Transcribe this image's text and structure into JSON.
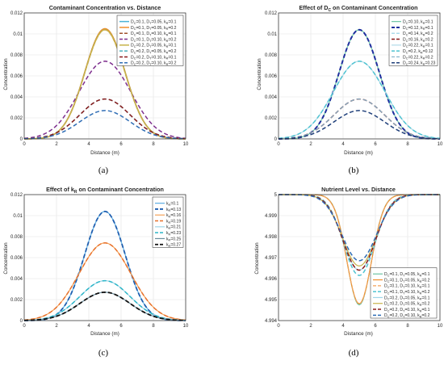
{
  "figure": {
    "subplots": [
      "(a)",
      "(b)",
      "(c)",
      "(d)"
    ]
  },
  "chart_data": [
    {
      "type": "line",
      "title": "Contaminant Concentration vs. Distance",
      "xlabel": "Distance (m)",
      "ylabel": "Concentration",
      "xlim": [
        0,
        10
      ],
      "ylim": [
        0,
        0.012
      ],
      "xticks": [
        "0",
        "2",
        "4",
        "6",
        "8",
        "10"
      ],
      "yticks": [
        "0",
        "0.002",
        "0.004",
        "0.006",
        "0.008",
        "0.01",
        "0.012"
      ],
      "grid": true,
      "legend_position": "top-right",
      "legend": [
        {
          "base": "D",
          "sub": "C",
          "rest": "=0.1, D",
          "sub2": "T",
          "rest2": "=0.05, k",
          "sub3": "R",
          "rest3": "=0.1",
          "color": "#4db3d6",
          "dash": "solid",
          "peak": 0.0105,
          "width": 1.5
        },
        {
          "base": "D",
          "sub": "C",
          "rest": "=0.1, D",
          "sub2": "T",
          "rest2": "=0.05, k",
          "sub3": "R",
          "rest3": "=0.2",
          "color": "#f28e2b",
          "dash": "solid",
          "peak": 0.0105,
          "width": 1.5
        },
        {
          "base": "D",
          "sub": "C",
          "rest": "=0.1, D",
          "sub2": "T",
          "rest2": "=0.10, k",
          "sub3": "R",
          "rest3": "=0.1",
          "color": "#a0522d",
          "dash": "dashed",
          "peak": 0.0104,
          "width": 1.5
        },
        {
          "base": "D",
          "sub": "C",
          "rest": "=0.1, D",
          "sub2": "T",
          "rest2": "=0.10, k",
          "sub3": "R",
          "rest3": "=0.2",
          "color": "#7e2f8e",
          "dash": "dashed",
          "peak": 0.0074,
          "width": 1.5
        },
        {
          "base": "D",
          "sub": "C",
          "rest": "=0.2, D",
          "sub2": "T",
          "rest2": "=0.05, k",
          "sub3": "R",
          "rest3": "=0.1",
          "color": "#c7b34a",
          "dash": "solid",
          "peak": 0.0104,
          "width": 1.5
        },
        {
          "base": "D",
          "sub": "C",
          "rest": "=0.2, D",
          "sub2": "T",
          "rest2": "=0.05, k",
          "sub3": "R",
          "rest3": "=0.2",
          "color": "#4fb3bf",
          "dash": "dashed",
          "peak": 0.0038,
          "width": 1.5
        },
        {
          "base": "D",
          "sub": "C",
          "rest": "=0.2, D",
          "sub2": "T",
          "rest2": "=0.10, k",
          "sub3": "R",
          "rest3": "=0.1",
          "color": "#8b1a1a",
          "dash": "dashed",
          "peak": 0.0038,
          "width": 1.5
        },
        {
          "base": "D",
          "sub": "C",
          "rest": "=0.2, D",
          "sub2": "T",
          "rest2": "=0.10, k",
          "sub3": "R",
          "rest3": "=0.2",
          "color": "#2f6db5",
          "dash": "dashed",
          "peak": 0.0027,
          "width": 1.5
        }
      ]
    },
    {
      "type": "line",
      "title_parts": [
        "Effect of D",
        "C",
        " on Contaminant Concentration"
      ],
      "xlabel": "Distance (m)",
      "ylabel": "Concentration",
      "xlim": [
        0,
        10
      ],
      "ylim": [
        0,
        0.012
      ],
      "xticks": [
        "0",
        "2",
        "4",
        "6",
        "8",
        "10"
      ],
      "yticks": [
        "0",
        "0.002",
        "0.004",
        "0.006",
        "0.008",
        "0.01",
        "0.012"
      ],
      "grid": true,
      "legend_position": "top-right",
      "legend": [
        {
          "base": "D",
          "sub": "C",
          "rest": "=0.10, k",
          "sub3": "R",
          "rest3": "=0.1",
          "color": "#6cc4a4",
          "dash": "solid",
          "peak": 0.0104,
          "width": 1.2
        },
        {
          "base": "D",
          "sub": "C",
          "rest": "=0.12, k",
          "sub3": "R",
          "rest3": "=0.1",
          "color": "#1f2f9e",
          "dash": "dashed",
          "peak": 0.0104,
          "width": 2.0
        },
        {
          "base": "D",
          "sub": "C",
          "rest": "=0.14, k",
          "sub3": "R",
          "rest3": "=0.2",
          "color": "#9fd5e8",
          "dash": "dashed",
          "peak": 0.0074,
          "width": 1.2
        },
        {
          "base": "D",
          "sub": "C",
          "rest": "=0.16, k",
          "sub3": "R",
          "rest3": "=0.2",
          "color": "#8b1a1a",
          "dash": "dashed",
          "peak": 0.0038,
          "width": 1.5
        },
        {
          "base": "D",
          "sub": "C",
          "rest": "=0.22, k",
          "sub3": "R",
          "rest3": "=0.1",
          "color": "#b0dbe8",
          "dash": "solid",
          "peak": 0.0074,
          "width": 1.2
        },
        {
          "base": "D",
          "sub": "C",
          "rest": "=0.2, k",
          "sub3": "R",
          "rest3": "=0.12",
          "color": "#4fc3d1",
          "dash": "dashed",
          "peak": 0.0074,
          "width": 1.5
        },
        {
          "base": "D",
          "sub": "C",
          "rest": "=0.22, k",
          "sub3": "R",
          "rest3": "=0.2",
          "color": "#7fb0c8",
          "dash": "dashed",
          "peak": 0.0038,
          "width": 1.2
        },
        {
          "base": "D",
          "sub": "C",
          "rest": "=0.24, k",
          "sub3": "R",
          "rest3": "=0.23",
          "color": "#1f3f7a",
          "dash": "dashed",
          "peak": 0.0027,
          "width": 1.5
        }
      ]
    },
    {
      "type": "line",
      "title_parts": [
        "Effect of k",
        "R",
        " on Contaminant Concentration"
      ],
      "xlabel": "Distance (m)",
      "ylabel": "Concentration",
      "xlim": [
        0,
        10
      ],
      "ylim": [
        0,
        0.012
      ],
      "xticks": [
        "0",
        "2",
        "4",
        "6",
        "8",
        "10"
      ],
      "yticks": [
        "0",
        "0.002",
        "0.004",
        "0.006",
        "0.008",
        "0.01",
        "0.012"
      ],
      "grid": true,
      "legend_position": "top-right",
      "legend": [
        {
          "base": "k",
          "sub": "R",
          "rest": "=0.1",
          "color": "#5dade2",
          "dash": "solid",
          "peak": 0.0104,
          "width": 1.2
        },
        {
          "base": "k",
          "sub": "R",
          "rest": "=0.13",
          "color": "#1f5fb0",
          "dash": "dashed",
          "peak": 0.0104,
          "width": 1.8
        },
        {
          "base": "k",
          "sub": "R",
          "rest": "=0.16",
          "color": "#f4a259",
          "dash": "solid",
          "peak": 0.0074,
          "width": 1.2
        },
        {
          "base": "k",
          "sub": "R",
          "rest": "=0.19",
          "color": "#e8702a",
          "dash": "dashed",
          "peak": 0.0074,
          "width": 1.5
        },
        {
          "base": "k",
          "sub": "R",
          "rest": "=0.21",
          "color": "#9fd5e8",
          "dash": "solid",
          "peak": 0.0038,
          "width": 1.2
        },
        {
          "base": "k",
          "sub": "R",
          "rest": "=0.23",
          "color": "#2bb5c8",
          "dash": "dashed",
          "peak": 0.0038,
          "width": 1.5
        },
        {
          "base": "k",
          "sub": "R",
          "rest": "=0.25",
          "color": "#6b8e9e",
          "dash": "solid",
          "peak": 0.0027,
          "width": 1.2
        },
        {
          "base": "k",
          "sub": "R",
          "rest": "=0.27",
          "color": "#111111",
          "dash": "dashed",
          "peak": 0.0027,
          "width": 1.8
        }
      ]
    },
    {
      "type": "line",
      "title": "Nutrient Level vs. Distance",
      "xlabel": "Distance (m)",
      "ylabel": "Concentration",
      "xlim": [
        0,
        10
      ],
      "ylim": [
        4.994,
        5.0
      ],
      "xticks": [
        "0",
        "2",
        "4",
        "6",
        "8",
        "10"
      ],
      "yticks": [
        "4.994",
        "4.995",
        "4.996",
        "4.997",
        "4.998",
        "4.999",
        "5"
      ],
      "grid": true,
      "legend_position": "bottom-right",
      "legend": [
        {
          "base": "D",
          "sub": "C",
          "rest": "=0.1, D",
          "sub2": "T",
          "rest2": "=0.05, k",
          "sub3": "R",
          "rest3": "=0.1",
          "color": "#6cc4a4",
          "dash": "solid",
          "min": 4.99475,
          "width": 1.2
        },
        {
          "base": "D",
          "sub": "C",
          "rest": "=0.1, D",
          "sub2": "T",
          "rest2": "=0.05, k",
          "sub3": "R",
          "rest3": "=0.2",
          "color": "#f28e2b",
          "dash": "solid",
          "min": 4.9948,
          "width": 1.2
        },
        {
          "base": "D",
          "sub": "C",
          "rest": "=0.1, D",
          "sub2": "T",
          "rest2": "=0.10, k",
          "sub3": "R",
          "rest3": "=0.1",
          "color": "#f4a259",
          "dash": "dashed",
          "min": 4.9948,
          "width": 1.2
        },
        {
          "base": "D",
          "sub": "C",
          "rest": "=0.1, D",
          "sub2": "T",
          "rest2": "=0.10, k",
          "sub3": "R",
          "rest3": "=0.2",
          "color": "#4fc3d1",
          "dash": "dashed",
          "min": 4.99615,
          "width": 1.5
        },
        {
          "base": "D",
          "sub": "C",
          "rest": "=0.2, D",
          "sub2": "T",
          "rest2": "=0.05, k",
          "sub3": "R",
          "rest3": "=0.1",
          "color": "#9fd5e8",
          "dash": "solid",
          "min": 4.9964,
          "width": 1.2
        },
        {
          "base": "D",
          "sub": "C",
          "rest": "=0.2, D",
          "sub2": "T",
          "rest2": "=0.05, k",
          "sub3": "R",
          "rest3": "=0.2",
          "color": "#c7b34a",
          "dash": "solid",
          "min": 4.9966,
          "width": 1.2
        },
        {
          "base": "D",
          "sub": "C",
          "rest": "=0.2, D",
          "sub2": "T",
          "rest2": "=0.10, k",
          "sub3": "R",
          "rest3": "=0.1",
          "color": "#8b1a1a",
          "dash": "dashed",
          "min": 4.9964,
          "width": 1.5
        },
        {
          "base": "D",
          "sub": "C",
          "rest": "=0.2, D",
          "sub2": "T",
          "rest2": "=0.10, k",
          "sub3": "R",
          "rest3": "=0.2",
          "color": "#2f6db5",
          "dash": "dashed",
          "min": 4.99685,
          "width": 1.5
        }
      ]
    }
  ]
}
